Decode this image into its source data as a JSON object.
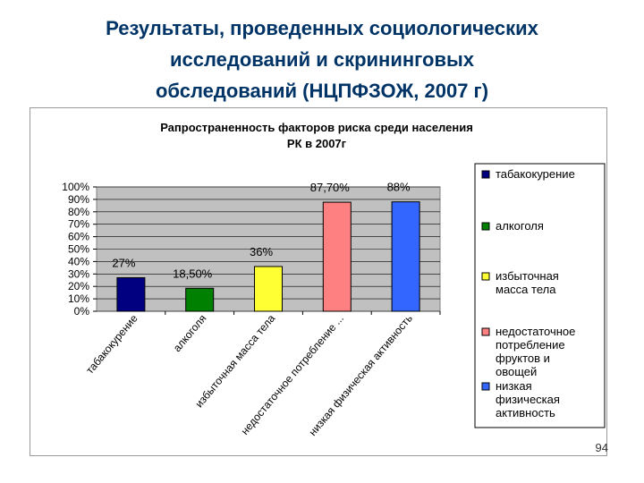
{
  "slide": {
    "title_lines": [
      "Результаты, проведенных социологических",
      "исследований и скрининговых",
      "обследований (НЦПФЗОЖ, 2007 г)"
    ],
    "page_number": "94"
  },
  "chart_data": {
    "type": "bar",
    "title_lines": [
      "Рапространенность факторов риска среди населения",
      "РК в 2007г"
    ],
    "categories": [
      "табакокурение",
      "алкоголя",
      "избыточная масса тела",
      "недостаточное потребление ...",
      "низкая физическая активность"
    ],
    "values": [
      27,
      18.5,
      36,
      87.7,
      88
    ],
    "data_labels": [
      "27%",
      "18,50%",
      "36%",
      "87,70%",
      "88%"
    ],
    "colors": [
      "#000080",
      "#008000",
      "#FFFF33",
      "#FF8080",
      "#3366FF"
    ],
    "legend": [
      [
        "табакокурение"
      ],
      [
        "алкоголя"
      ],
      [
        "избыточная",
        "масса тела"
      ],
      [
        "недостаточное",
        "потребление",
        "фруктов и",
        "овощей"
      ],
      [
        "низкая",
        "физическая",
        "активность"
      ]
    ],
    "legend_position": "right",
    "y_ticks": [
      "0%",
      "10%",
      "20%",
      "30%",
      "40%",
      "50%",
      "60%",
      "70%",
      "80%",
      "90%",
      "100%"
    ],
    "ylim": [
      0,
      100
    ],
    "plot_background": "#C0C0C0",
    "grid": true
  }
}
